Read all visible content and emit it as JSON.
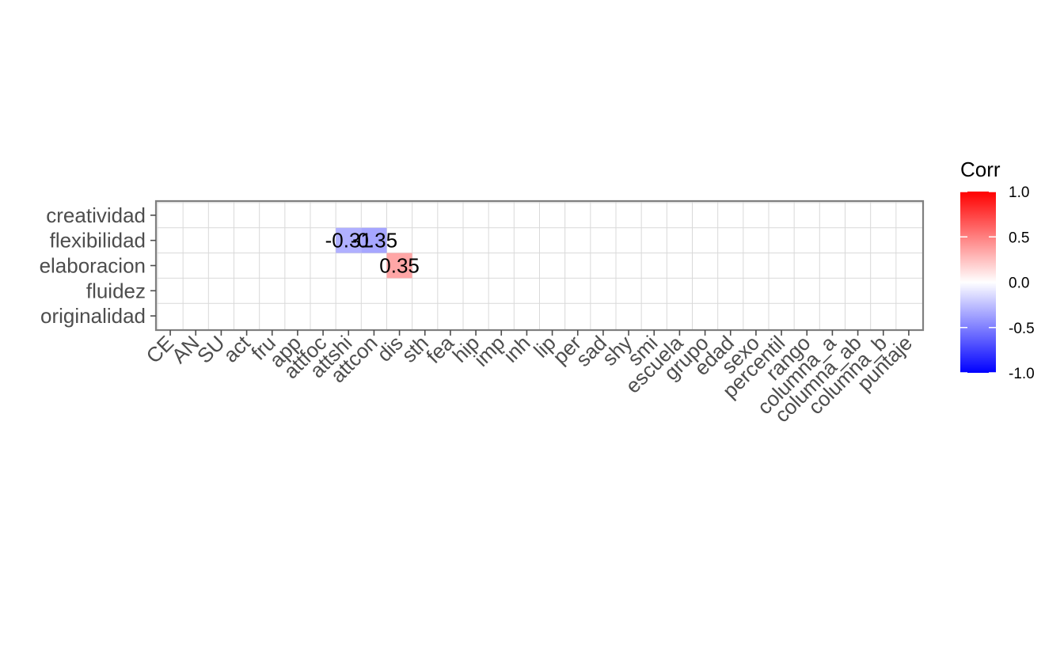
{
  "chart_data": {
    "type": "heatmap",
    "x_categories": [
      "CE",
      "AN",
      "SU",
      "act",
      "fru",
      "app",
      "attfoc",
      "attshi",
      "attcon",
      "dis",
      "sth",
      "fea",
      "hip",
      "imp",
      "inh",
      "lip",
      "per",
      "sad",
      "shy",
      "smi",
      "escuela",
      "grupo",
      "edad",
      "sexo",
      "percentil",
      "rango",
      "columna_a",
      "columna_ab",
      "columna_b",
      "puntaje"
    ],
    "y_categories": [
      "creatividad",
      "flexibilidad",
      "elaboracion",
      "fluidez",
      "originalidad"
    ],
    "cells": [
      {
        "x": "attshi",
        "y": "flexibilidad",
        "value": -0.31,
        "label": "-0.31"
      },
      {
        "x": "attcon",
        "y": "flexibilidad",
        "value": -0.35,
        "label": "-0.35"
      },
      {
        "x": "dis",
        "y": "elaboracion",
        "value": 0.35,
        "label": "0.35"
      }
    ],
    "legend": {
      "title": "Corr",
      "limits": [
        -1.0,
        1.0
      ],
      "ticks": [
        "1.0",
        "0.5",
        "0.0",
        "-0.5",
        "-1.0"
      ],
      "tick_values": [
        1.0,
        0.5,
        0.0,
        -0.5,
        -1.0
      ],
      "low_color": "#0000ff",
      "mid_color": "#ffffff",
      "high_color": "#ff0000",
      "placement": "right"
    },
    "grid": true
  }
}
